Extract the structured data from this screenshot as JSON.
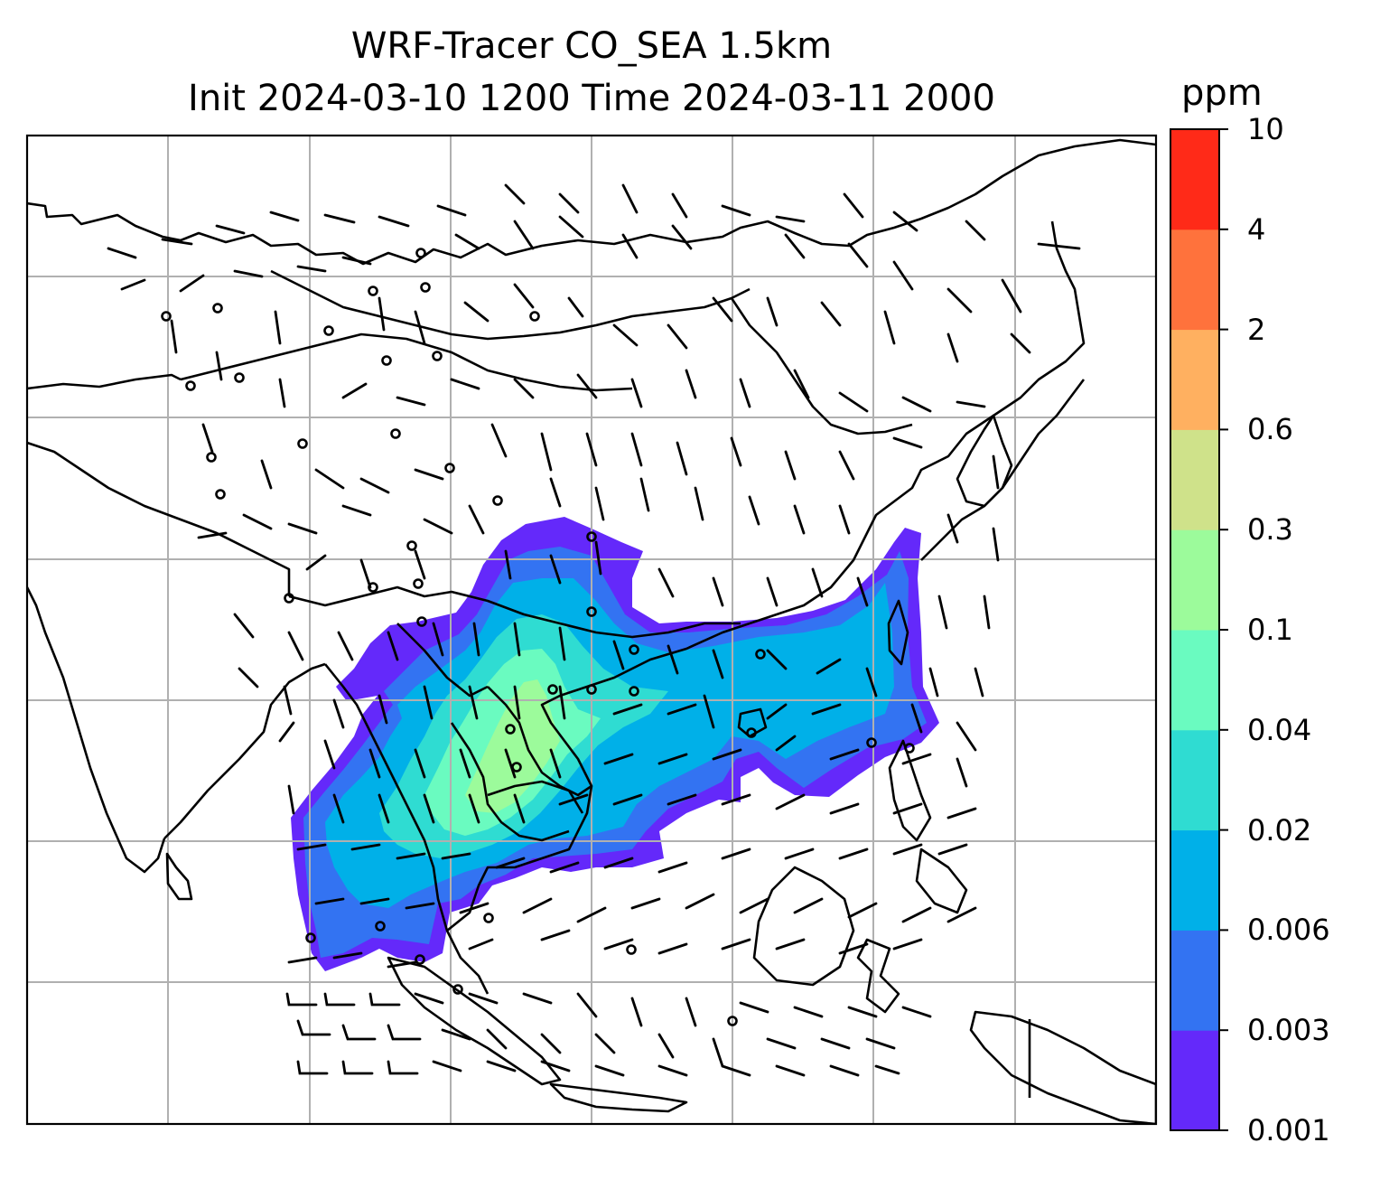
{
  "title": {
    "line1": "WRF-Tracer CO_SEA 1.5km",
    "line2": "Init 2024-03-10 1200 Time 2024-03-11 2000"
  },
  "colorbar": {
    "unit": "ppm",
    "ticks": [
      "0.001",
      "0.003",
      "0.006",
      "0.02",
      "0.04",
      "0.1",
      "0.3",
      "0.6",
      "2",
      "4",
      "10"
    ],
    "colors": [
      "#6429fa",
      "#3373f2",
      "#00b0e8",
      "#2fdcd2",
      "#6afbc0",
      "#9cfb9b",
      "#cfe28a",
      "#ffb060",
      "#ff723c",
      "#ff2a18"
    ]
  },
  "map": {
    "gridlines": true,
    "colors": {
      "coast": "#000000",
      "grid": "#b0b0b0",
      "barb": "#000000"
    }
  }
}
